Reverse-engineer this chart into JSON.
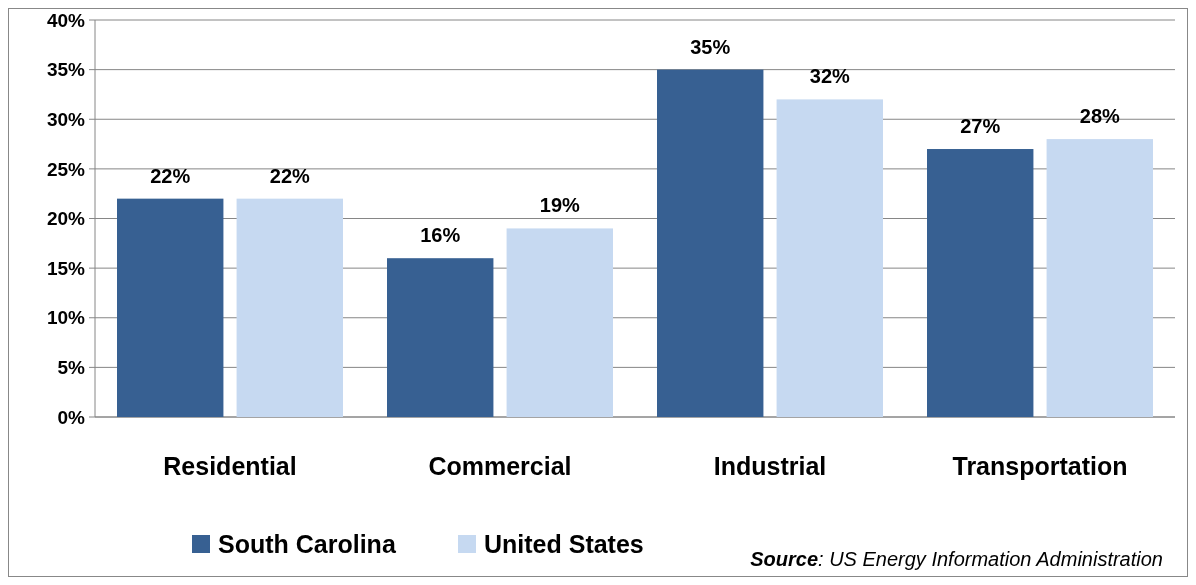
{
  "chart_data": {
    "type": "bar",
    "categories": [
      "Residential",
      "Commercial",
      "Industrial",
      "Transportation"
    ],
    "series": [
      {
        "name": "South Carolina",
        "color": "#376092",
        "values": [
          22,
          16,
          35,
          27
        ],
        "value_labels": [
          "22%",
          "16%",
          "35%",
          "27%"
        ]
      },
      {
        "name": "United States",
        "color": "#c6d9f1",
        "values": [
          22,
          19,
          32,
          28
        ],
        "value_labels": [
          "22%",
          "19%",
          "32%",
          "28%"
        ]
      }
    ],
    "ylim": [
      0,
      40
    ],
    "yticks": [
      {
        "value": 0,
        "label": "0%"
      },
      {
        "value": 5,
        "label": "5%"
      },
      {
        "value": 10,
        "label": "10%"
      },
      {
        "value": 15,
        "label": "15%"
      },
      {
        "value": 20,
        "label": "20%"
      },
      {
        "value": 25,
        "label": "25%"
      },
      {
        "value": 30,
        "label": "30%"
      },
      {
        "value": 35,
        "label": "35%"
      },
      {
        "value": 40,
        "label": "40%"
      }
    ],
    "grid": "y",
    "legend": "bottom left",
    "annotations": [
      "Source: US Energy Information Administration"
    ]
  }
}
